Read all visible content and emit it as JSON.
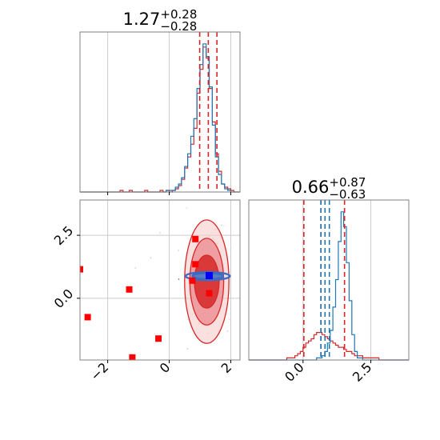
{
  "figure": {
    "type": "corner-plot",
    "colors": {
      "reference": "#1f77b4",
      "sample": "#d62728",
      "true_value_marker": "#0000ff",
      "outlier_marker": "#ff0000",
      "grid": "#cccccc",
      "axes": "#808080"
    }
  },
  "chart_data": [
    {
      "type": "histogram",
      "panel": "param1-marginal",
      "title": {
        "value": "1.27",
        "upper": "+0.28",
        "lower": "−0.28"
      },
      "xlim": [
        -2.9,
        2.3
      ],
      "grid": true,
      "quantiles": {
        "median": 1.27,
        "low": 0.99,
        "high": 1.55
      },
      "bins_start": -2.9,
      "bin_width": 0.1,
      "series": [
        {
          "color": "#d62728",
          "counts": [
            0,
            0,
            0,
            0,
            0,
            0,
            0,
            0,
            0,
            0,
            0,
            0,
            0,
            1,
            0,
            0,
            1,
            0,
            0,
            0,
            0,
            1,
            0,
            0,
            0,
            0,
            1,
            0,
            1,
            0,
            1,
            2,
            4,
            8,
            15,
            22,
            30,
            40,
            62,
            77,
            91,
            84,
            65,
            44,
            24,
            13,
            5,
            3,
            2,
            1,
            0,
            0
          ]
        },
        {
          "color": "#1f77b4",
          "counts": [
            0,
            0,
            0,
            0,
            0,
            0,
            0,
            0,
            0,
            0,
            0,
            0,
            0,
            0,
            0,
            0,
            0,
            0,
            0,
            0,
            0,
            0,
            0,
            0,
            0,
            0,
            0,
            0,
            1,
            1,
            1,
            3,
            5,
            9,
            16,
            24,
            35,
            46,
            65,
            80,
            93,
            85,
            66,
            42,
            22,
            11,
            5,
            2,
            1,
            0,
            0,
            0
          ]
        }
      ]
    },
    {
      "type": "histogram",
      "panel": "param2-marginal",
      "title": {
        "value": "0.66",
        "upper": "+0.87",
        "lower": "−0.63"
      },
      "xlim": [
        -2.0,
        3.9
      ],
      "xticks": [
        "0.0",
        "2.5"
      ],
      "grid": true,
      "quantiles_sample": {
        "median": 0.66,
        "low": 0.03,
        "high": 1.53
      },
      "quantiles_reference": {
        "median": 0.81,
        "low": 0.66,
        "high": 0.97
      },
      "bins_start": -2.0,
      "bin_width": 0.1,
      "series": [
        {
          "color": "#d62728",
          "counts": [
            0,
            0,
            0,
            0,
            0,
            0,
            0,
            0,
            0,
            0,
            0,
            0,
            0,
            0,
            1,
            1,
            1,
            2,
            3,
            4,
            6,
            8,
            9,
            10,
            12,
            13,
            13,
            12,
            11,
            10,
            9,
            8,
            7,
            6,
            6,
            5,
            4,
            4,
            3,
            2,
            2,
            2,
            1,
            1,
            1,
            1,
            1,
            1,
            0,
            0,
            0,
            0,
            0,
            0,
            0,
            0,
            0,
            0,
            0
          ]
        },
        {
          "color": "#1f77b4",
          "counts": [
            0,
            0,
            0,
            0,
            0,
            0,
            0,
            0,
            0,
            0,
            0,
            0,
            0,
            0,
            0,
            0,
            0,
            0,
            0,
            0,
            0,
            0,
            0,
            0,
            0,
            1,
            1,
            2,
            4,
            8,
            14,
            25,
            38,
            56,
            70,
            63,
            46,
            28,
            12,
            4,
            1,
            1,
            0,
            0,
            0,
            0,
            0,
            0,
            0,
            0,
            0,
            0,
            0,
            0,
            0,
            0,
            0,
            0,
            0
          ]
        }
      ]
    },
    {
      "type": "scatter",
      "panel": "joint",
      "xlim": [
        -2.9,
        2.3
      ],
      "ylim": [
        -2.45,
        3.9
      ],
      "xticks": [
        "−2",
        "0",
        "2"
      ],
      "yticks": [
        "0.0",
        "2.5"
      ],
      "grid": true,
      "sample_contours": {
        "color": "#d62728",
        "center": [
          1.22,
          0.66
        ],
        "levels": [
          {
            "rx": 0.72,
            "ry": 2.45
          },
          {
            "rx": 0.55,
            "ry": 1.72
          },
          {
            "rx": 0.4,
            "ry": 1.05
          }
        ]
      },
      "reference_contours": {
        "color": "#3a6cc4",
        "center": [
          1.25,
          0.88
        ],
        "levels": [
          {
            "rx": 0.72,
            "ry": 0.16
          },
          {
            "rx": 0.5,
            "ry": 0.12
          }
        ]
      },
      "outliers": {
        "color": "#ff0000",
        "points": [
          [
            -2.9,
            1.15
          ],
          [
            -2.65,
            -0.75
          ],
          [
            -1.3,
            0.35
          ],
          [
            -1.2,
            -2.35
          ],
          [
            -0.35,
            -1.6
          ],
          [
            0.85,
            2.35
          ],
          [
            0.85,
            1.35
          ],
          [
            0.75,
            0.7
          ],
          [
            1.3,
            0.2
          ]
        ]
      },
      "true_value": {
        "color": "#0000ff",
        "x": 1.3,
        "y": 0.9
      }
    }
  ]
}
